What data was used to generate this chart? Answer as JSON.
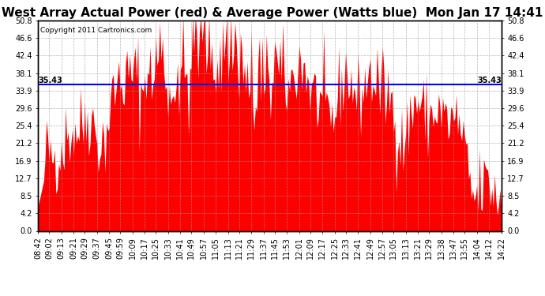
{
  "title": "West Array Actual Power (red) & Average Power (Watts blue)  Mon Jan 17 14:41",
  "copyright": "Copyright 2011 Cartronics.com",
  "average_power": 35.43,
  "y_ticks": [
    0.0,
    4.2,
    8.5,
    12.7,
    16.9,
    21.2,
    25.4,
    29.6,
    33.9,
    38.1,
    42.4,
    46.6,
    50.8
  ],
  "ylim": [
    0.0,
    50.8
  ],
  "x_labels": [
    "08:42",
    "09:02",
    "09:13",
    "09:21",
    "09:29",
    "09:37",
    "09:45",
    "09:59",
    "10:09",
    "10:17",
    "10:25",
    "10:33",
    "10:41",
    "10:49",
    "10:57",
    "11:05",
    "11:13",
    "11:21",
    "11:29",
    "11:37",
    "11:45",
    "11:53",
    "12:01",
    "12:09",
    "12:17",
    "12:25",
    "12:33",
    "12:41",
    "12:49",
    "12:57",
    "13:05",
    "13:13",
    "13:21",
    "13:29",
    "13:38",
    "13:47",
    "13:55",
    "14:04",
    "14:12",
    "14:22"
  ],
  "bar_color": "#FF0000",
  "avg_line_color": "#0000FF",
  "background_color": "#FFFFFF",
  "plot_bg_color": "#FFFFFF",
  "grid_color": "#999999",
  "title_fontsize": 11,
  "tick_fontsize": 7,
  "avg_label_fontsize": 7,
  "seed": 42
}
